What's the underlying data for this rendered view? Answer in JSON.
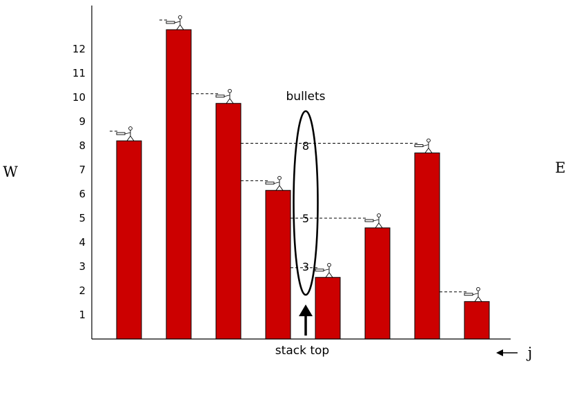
{
  "labels": {
    "west": "W",
    "east": "E",
    "bullets": "bullets",
    "stack_top": "stack top",
    "index": "j"
  },
  "colors": {
    "bar": "#cc0000",
    "outline": "#000000"
  },
  "icons": {
    "shooter": "stick-figure-with-gun-icon",
    "stack_pointer": "up-arrow-icon",
    "index_direction": "left-arrow-icon"
  },
  "chart_data": {
    "type": "bar",
    "y_ticks": [
      1,
      2,
      3,
      4,
      5,
      6,
      7,
      8,
      9,
      10,
      11,
      12
    ],
    "ylim": [
      0,
      13.3
    ],
    "values": [
      8.2,
      12.8,
      9.75,
      6.15,
      2.55,
      4.6,
      7.7,
      1.55
    ],
    "bullet_stack": [
      8,
      5,
      3
    ]
  }
}
